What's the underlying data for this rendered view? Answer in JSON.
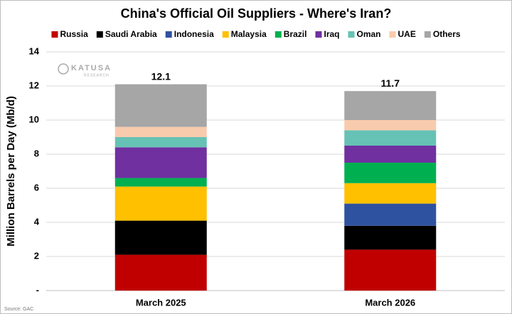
{
  "chart_data": {
    "type": "stacked_bar",
    "title": "China's Official Oil Suppliers - Where's Iran?",
    "y_label": "Million Barrels per Day (Mb/d)",
    "source": "Source: GAC",
    "watermark": [
      "KATUSA",
      "RESEARCH"
    ],
    "categories": [
      "March 2025",
      "March 2026"
    ],
    "series": [
      {
        "name": "Russia",
        "color": "#c00000",
        "values": [
          2.1,
          2.4
        ]
      },
      {
        "name": "Saudi Arabia",
        "color": "#000000",
        "values": [
          2.0,
          1.4
        ]
      },
      {
        "name": "Indonesia",
        "color": "#2f52a0",
        "values": [
          0,
          1.3
        ]
      },
      {
        "name": "Malaysia",
        "color": "#ffc000",
        "values": [
          2.0,
          1.2
        ]
      },
      {
        "name": "Brazil",
        "color": "#00b050",
        "values": [
          0.5,
          1.2
        ]
      },
      {
        "name": "Iraq",
        "color": "#7030a0",
        "values": [
          1.8,
          1.0
        ]
      },
      {
        "name": "Oman",
        "color": "#66c2b4",
        "values": [
          0.6,
          0.9
        ]
      },
      {
        "name": "UAE",
        "color": "#f8cbad",
        "values": [
          0.6,
          0.6
        ]
      },
      {
        "name": "Others",
        "color": "#a6a6a6",
        "values": [
          2.5,
          1.7
        ]
      }
    ],
    "totals": [
      12.1,
      11.7
    ],
    "ylim": [
      0,
      14
    ],
    "yticks": [
      {
        "value": 0,
        "label": "-"
      },
      2,
      4,
      6,
      8,
      10,
      12,
      14
    ],
    "grid": true
  }
}
